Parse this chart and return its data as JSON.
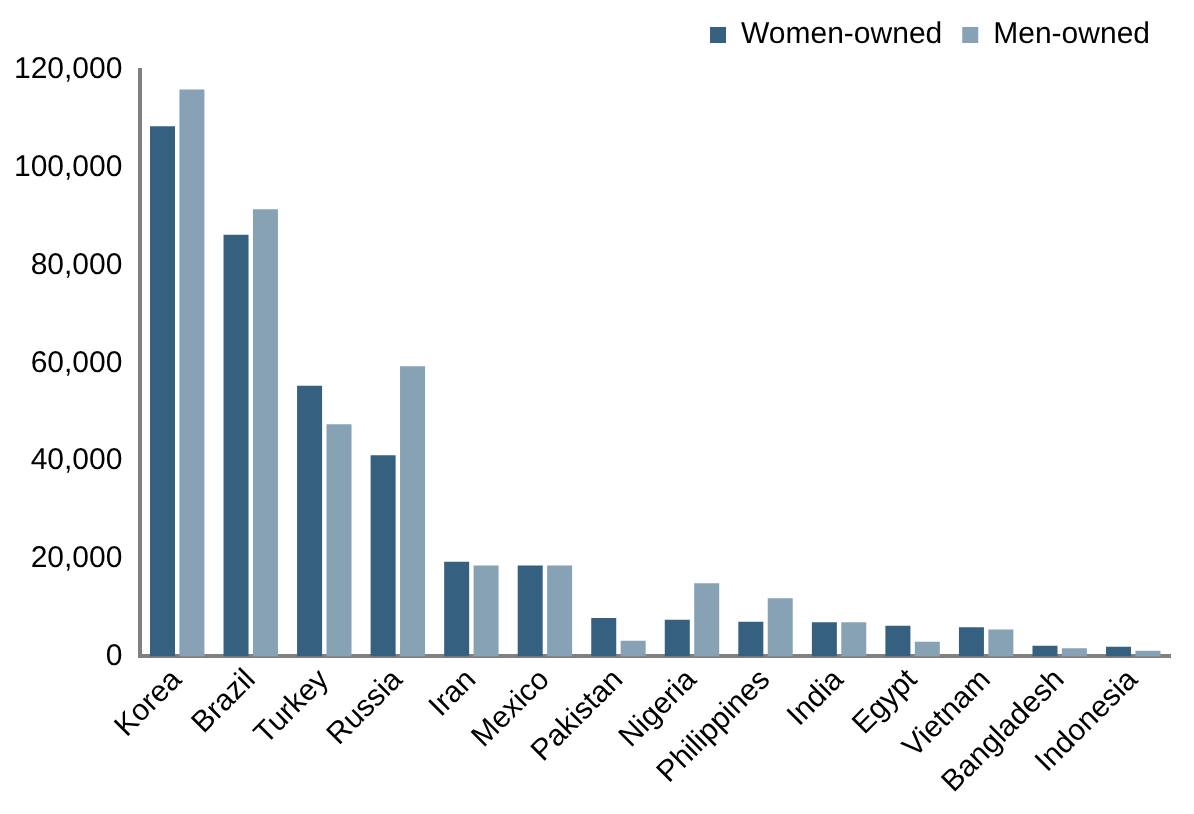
{
  "chart_data": {
    "type": "bar",
    "categories": [
      "Korea",
      "Brazil",
      "Turkey",
      "Russia",
      "Iran",
      "Mexico",
      "Pakistan",
      "Nigeria",
      "Philippines",
      "India",
      "Egypt",
      "Vietnam",
      "Bangladesh",
      "Indonesia"
    ],
    "series": [
      {
        "name": "Women-owned",
        "color": "#35607f",
        "values": [
          108500,
          86300,
          55400,
          41200,
          19400,
          18600,
          7900,
          7500,
          7100,
          7000,
          6300,
          6000,
          2200,
          2000
        ]
      },
      {
        "name": "Men-owned",
        "color": "#87a2b5",
        "values": [
          116000,
          91500,
          47500,
          59400,
          18600,
          18600,
          3200,
          15000,
          11900,
          7000,
          3000,
          5500,
          1700,
          1200
        ]
      }
    ],
    "ylim": [
      0,
      120000
    ],
    "yticks": [
      {
        "value": 0,
        "label": "0"
      },
      {
        "value": 20000,
        "label": "20,000"
      },
      {
        "value": 40000,
        "label": "40,000"
      },
      {
        "value": 60000,
        "label": "60,000"
      },
      {
        "value": 80000,
        "label": "80,000"
      },
      {
        "value": 100000,
        "label": "100,000"
      },
      {
        "value": 120000,
        "label": "120,000"
      }
    ],
    "grid": false,
    "legend": "top right"
  }
}
